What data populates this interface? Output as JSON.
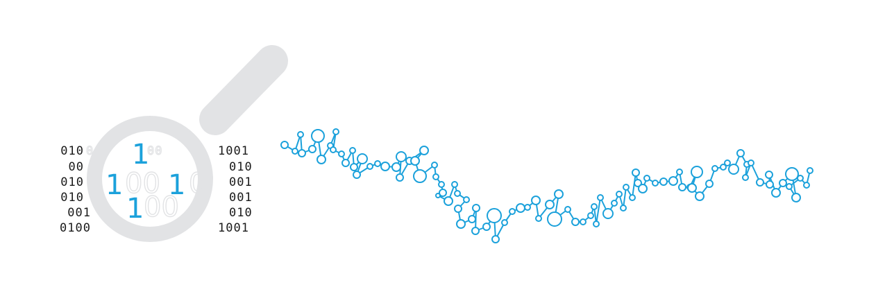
{
  "colors": {
    "accent": "#1ba1db",
    "text": "#1a1a1a",
    "magnifier": "#e2e3e5"
  },
  "icons": [
    "magnifying-glass-icon",
    "molecule-chain-icon"
  ],
  "binary": {
    "left_rows": [
      "010",
      "00",
      "010",
      "010",
      "001",
      "0100"
    ],
    "right_rows": [
      "1001",
      "010",
      "001",
      "001",
      "010",
      "1001"
    ],
    "lens_rows": [
      {
        "highlight": "1",
        "faint_before": "0",
        "faint_after": "00"
      },
      {
        "highlight": "1",
        "faint_mid": "00",
        "highlight2": "1",
        "faint_after": "0"
      },
      {
        "highlight": "1",
        "faint_after": "00"
      }
    ]
  }
}
